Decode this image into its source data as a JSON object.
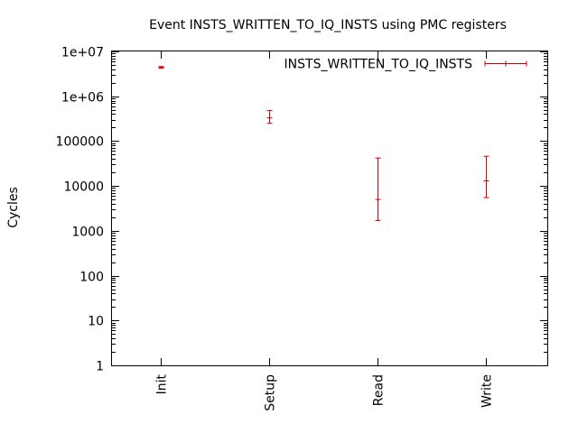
{
  "chart_data": {
    "type": "errorbar",
    "title": "Event INSTS_WRITTEN_TO_IQ_INSTS using PMC registers",
    "xlabel": "",
    "ylabel": "Cycles",
    "yscale": "log",
    "ylim": [
      1,
      10000000
    ],
    "y_ticks": [
      {
        "value": 1,
        "label": "1"
      },
      {
        "value": 10,
        "label": "10"
      },
      {
        "value": 100,
        "label": "100"
      },
      {
        "value": 1000,
        "label": "1000"
      },
      {
        "value": 10000,
        "label": "10000"
      },
      {
        "value": 100000,
        "label": "100000"
      },
      {
        "value": 1000000,
        "label": "1e+06"
      },
      {
        "value": 10000000,
        "label": "1e+07"
      }
    ],
    "categories": [
      "Init",
      "Setup",
      "Read",
      "Write"
    ],
    "legend_position": "top-right",
    "grid": false,
    "series": [
      {
        "name": "INSTS_WRITTEN_TO_IQ_INSTS",
        "color": "#cc0000",
        "points": [
          {
            "category": "Init",
            "value": 4400000,
            "low": 4200000,
            "high": 4600000
          },
          {
            "category": "Setup",
            "value": 330000,
            "low": 250000,
            "high": 480000
          },
          {
            "category": "Read",
            "value": 5000,
            "low": 1700,
            "high": 42000
          },
          {
            "category": "Write",
            "value": 13000,
            "low": 5500,
            "high": 46000
          }
        ]
      }
    ]
  }
}
